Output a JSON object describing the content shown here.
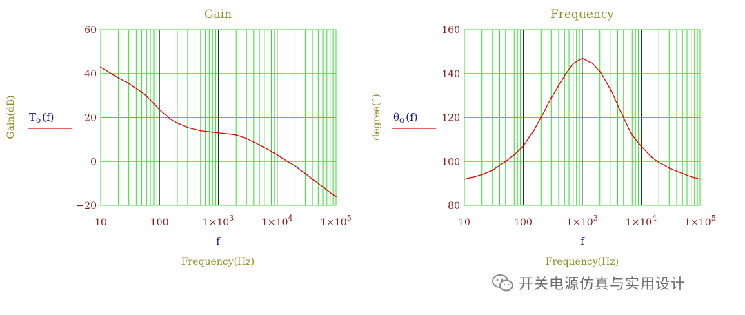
{
  "colors": {
    "curve": "#e00000",
    "grid_major": "#2a2a2a",
    "grid_minor": "#33dd33",
    "title_text": "#8b8b1e",
    "tick_text": "#8b1a1a",
    "var_text": "#1a1a8b"
  },
  "watermark": {
    "text": "开关电源仿真与实用设计",
    "icon": "wechat-icon"
  },
  "chart_data": [
    {
      "type": "line",
      "title": "Gain",
      "xlabel_var": "f",
      "xlabel": "Frequency(Hz)",
      "ylabel": "Gain(dB)",
      "legend": {
        "base": "T",
        "sub": "o",
        "arg": "(f)"
      },
      "x_scale": "log",
      "xlim": [
        10,
        100000
      ],
      "ylim": [
        -20,
        60
      ],
      "y_ticks": [
        "60",
        "40",
        "20",
        "0",
        "−20"
      ],
      "x_ticks": [
        {
          "mant": "10",
          "exp": ""
        },
        {
          "mant": "100",
          "exp": ""
        },
        {
          "mant": "1×10",
          "exp": "3"
        },
        {
          "mant": "1×10",
          "exp": "4"
        },
        {
          "mant": "1×10",
          "exp": "5"
        }
      ],
      "series": [
        {
          "x": [
            10,
            15,
            20,
            30,
            50,
            70,
            100,
            150,
            200,
            300,
            500,
            700,
            1000,
            1500,
            2000,
            3000,
            5000,
            7000,
            10000,
            15000,
            20000,
            30000,
            50000,
            70000,
            100000
          ],
          "values": [
            43,
            40,
            38,
            35.5,
            31.5,
            28,
            23.5,
            19.5,
            17.5,
            15.5,
            14,
            13.5,
            13,
            12.5,
            12,
            10.5,
            7.5,
            5.5,
            3,
            0,
            -2,
            -5.5,
            -10,
            -13,
            -16
          ]
        }
      ]
    },
    {
      "type": "line",
      "title": "Frequency",
      "xlabel_var": "f",
      "xlabel": "Frequency(Hz)",
      "ylabel": "degree(°)",
      "legend": {
        "base": "θ",
        "sub": "o",
        "arg": "(f)"
      },
      "x_scale": "log",
      "xlim": [
        10,
        100000
      ],
      "ylim": [
        80,
        160
      ],
      "y_ticks": [
        "160",
        "140",
        "120",
        "100",
        "80"
      ],
      "x_ticks": [
        {
          "mant": "10",
          "exp": ""
        },
        {
          "mant": "100",
          "exp": ""
        },
        {
          "mant": "1×10",
          "exp": "3"
        },
        {
          "mant": "1×10",
          "exp": "4"
        },
        {
          "mant": "1×10",
          "exp": "5"
        }
      ],
      "series": [
        {
          "x": [
            10,
            15,
            20,
            30,
            50,
            70,
            100,
            150,
            200,
            300,
            500,
            700,
            1000,
            1500,
            2000,
            3000,
            5000,
            7000,
            10000,
            15000,
            20000,
            30000,
            50000,
            70000,
            100000
          ],
          "values": [
            92,
            93,
            94,
            96,
            100,
            103,
            107,
            114,
            120,
            129,
            139,
            144.5,
            147,
            144.5,
            141,
            133,
            120,
            112,
            107,
            102,
            99.5,
            97,
            94.5,
            93,
            92
          ]
        }
      ]
    }
  ]
}
